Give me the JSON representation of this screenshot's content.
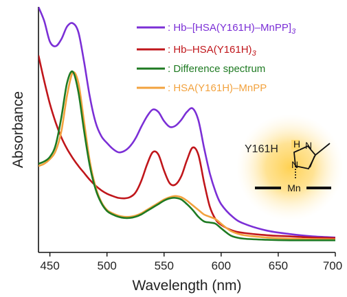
{
  "chart_data": {
    "type": "line",
    "title": "",
    "xlabel": "Wavelength (nm)",
    "ylabel": "Absorbance",
    "xlim": [
      440,
      700
    ],
    "ylim": [
      0,
      1
    ],
    "xticks": [
      450,
      500,
      550,
      600,
      650,
      700
    ],
    "y_tick_labels": false,
    "grid": false,
    "legend_placement": "top-right",
    "series": [
      {
        "name": "Hb–[HSA(Y161H)–MnPP]3",
        "legend_text": ": Hb–[HSA(Y161H)–MnPP]",
        "legend_sub": "3",
        "color": "#7b2fd6",
        "points": [
          [
            440,
            1.02
          ],
          [
            445,
            0.96
          ],
          [
            450,
            0.87
          ],
          [
            455,
            0.85
          ],
          [
            460,
            0.88
          ],
          [
            465,
            0.935
          ],
          [
            470,
            0.95
          ],
          [
            475,
            0.91
          ],
          [
            480,
            0.78
          ],
          [
            485,
            0.63
          ],
          [
            490,
            0.52
          ],
          [
            495,
            0.46
          ],
          [
            500,
            0.43
          ],
          [
            505,
            0.405
          ],
          [
            510,
            0.39
          ],
          [
            515,
            0.395
          ],
          [
            520,
            0.415
          ],
          [
            525,
            0.45
          ],
          [
            530,
            0.5
          ],
          [
            535,
            0.545
          ],
          [
            540,
            0.575
          ],
          [
            545,
            0.565
          ],
          [
            550,
            0.525
          ],
          [
            555,
            0.5
          ],
          [
            560,
            0.505
          ],
          [
            565,
            0.53
          ],
          [
            570,
            0.565
          ],
          [
            575,
            0.58
          ],
          [
            580,
            0.53
          ],
          [
            585,
            0.41
          ],
          [
            590,
            0.3
          ],
          [
            595,
            0.22
          ],
          [
            600,
            0.165
          ],
          [
            610,
            0.11
          ],
          [
            620,
            0.08
          ],
          [
            640,
            0.05
          ],
          [
            660,
            0.035
          ],
          [
            680,
            0.025
          ],
          [
            700,
            0.02
          ]
        ]
      },
      {
        "name": "Hb–HSA(Y161H)3",
        "legend_text": ": Hb–HSA(Y161H)",
        "legend_sub": "3",
        "color": "#c0161b",
        "points": [
          [
            440,
            0.81
          ],
          [
            445,
            0.7
          ],
          [
            450,
            0.6
          ],
          [
            455,
            0.52
          ],
          [
            460,
            0.455
          ],
          [
            465,
            0.405
          ],
          [
            470,
            0.365
          ],
          [
            475,
            0.33
          ],
          [
            480,
            0.3
          ],
          [
            485,
            0.27
          ],
          [
            490,
            0.245
          ],
          [
            495,
            0.225
          ],
          [
            500,
            0.21
          ],
          [
            505,
            0.2
          ],
          [
            510,
            0.192
          ],
          [
            515,
            0.19
          ],
          [
            520,
            0.195
          ],
          [
            525,
            0.215
          ],
          [
            530,
            0.265
          ],
          [
            535,
            0.335
          ],
          [
            540,
            0.39
          ],
          [
            545,
            0.38
          ],
          [
            550,
            0.31
          ],
          [
            555,
            0.255
          ],
          [
            560,
            0.25
          ],
          [
            565,
            0.285
          ],
          [
            570,
            0.355
          ],
          [
            575,
            0.41
          ],
          [
            580,
            0.38
          ],
          [
            585,
            0.26
          ],
          [
            590,
            0.155
          ],
          [
            595,
            0.1
          ],
          [
            600,
            0.075
          ],
          [
            610,
            0.05
          ],
          [
            620,
            0.04
          ],
          [
            640,
            0.03
          ],
          [
            660,
            0.025
          ],
          [
            680,
            0.02
          ],
          [
            700,
            0.018
          ]
        ]
      },
      {
        "name": "Difference spectrum",
        "legend_text": ": Difference spectrum",
        "legend_sub": "",
        "color": "#1e7a22",
        "points": [
          [
            440,
            0.34
          ],
          [
            445,
            0.35
          ],
          [
            450,
            0.37
          ],
          [
            455,
            0.42
          ],
          [
            460,
            0.54
          ],
          [
            465,
            0.69
          ],
          [
            470,
            0.74
          ],
          [
            475,
            0.65
          ],
          [
            480,
            0.48
          ],
          [
            485,
            0.33
          ],
          [
            490,
            0.23
          ],
          [
            495,
            0.17
          ],
          [
            500,
            0.135
          ],
          [
            505,
            0.12
          ],
          [
            510,
            0.11
          ],
          [
            515,
            0.105
          ],
          [
            520,
            0.105
          ],
          [
            525,
            0.11
          ],
          [
            530,
            0.12
          ],
          [
            535,
            0.135
          ],
          [
            540,
            0.15
          ],
          [
            545,
            0.165
          ],
          [
            550,
            0.18
          ],
          [
            555,
            0.19
          ],
          [
            560,
            0.192
          ],
          [
            565,
            0.185
          ],
          [
            570,
            0.165
          ],
          [
            575,
            0.14
          ],
          [
            580,
            0.11
          ],
          [
            585,
            0.09
          ],
          [
            590,
            0.085
          ],
          [
            595,
            0.08
          ],
          [
            600,
            0.06
          ],
          [
            605,
            0.04
          ],
          [
            610,
            0.025
          ],
          [
            620,
            0.015
          ],
          [
            640,
            0.01
          ],
          [
            660,
            0.008
          ],
          [
            700,
            0.008
          ]
        ]
      },
      {
        "name": "HSA(Y161H)–MnPP",
        "legend_text": ": HSA(Y161H)–MnPP",
        "legend_sub": "",
        "color": "#f2a23e",
        "points": [
          [
            440,
            0.33
          ],
          [
            445,
            0.34
          ],
          [
            450,
            0.36
          ],
          [
            455,
            0.395
          ],
          [
            460,
            0.48
          ],
          [
            465,
            0.635
          ],
          [
            470,
            0.735
          ],
          [
            475,
            0.69
          ],
          [
            480,
            0.52
          ],
          [
            485,
            0.35
          ],
          [
            490,
            0.24
          ],
          [
            495,
            0.175
          ],
          [
            500,
            0.14
          ],
          [
            505,
            0.125
          ],
          [
            510,
            0.115
          ],
          [
            515,
            0.11
          ],
          [
            520,
            0.11
          ],
          [
            525,
            0.115
          ],
          [
            530,
            0.125
          ],
          [
            535,
            0.14
          ],
          [
            540,
            0.155
          ],
          [
            545,
            0.17
          ],
          [
            550,
            0.185
          ],
          [
            555,
            0.195
          ],
          [
            560,
            0.2
          ],
          [
            565,
            0.195
          ],
          [
            570,
            0.18
          ],
          [
            575,
            0.16
          ],
          [
            580,
            0.14
          ],
          [
            585,
            0.12
          ],
          [
            590,
            0.11
          ],
          [
            595,
            0.1
          ],
          [
            600,
            0.08
          ],
          [
            605,
            0.06
          ],
          [
            610,
            0.045
          ],
          [
            620,
            0.03
          ],
          [
            640,
            0.02
          ],
          [
            660,
            0.015
          ],
          [
            700,
            0.012
          ]
        ]
      }
    ],
    "annotations": {
      "inset_label": "Y161H",
      "molecule_nh": "N",
      "molecule_h": "H",
      "molecule_n": "N",
      "metal_label": "Mn"
    }
  }
}
